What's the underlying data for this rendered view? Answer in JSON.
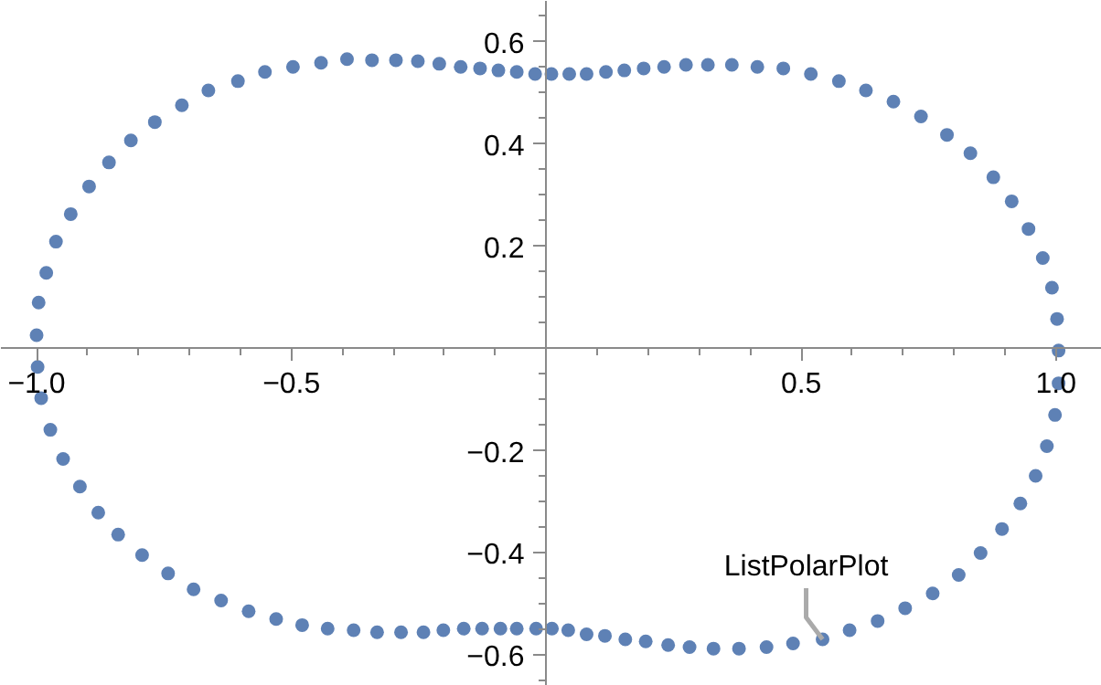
{
  "chart_data": {
    "type": "scatter",
    "marker": "circle",
    "grid": false,
    "xlim": [
      -1.07,
      1.09
    ],
    "ylim": [
      -0.66,
      0.68
    ],
    "xticks": [
      {
        "value": -1.0,
        "label": "−1.0"
      },
      {
        "value": -0.9,
        "label": null
      },
      {
        "value": -0.8,
        "label": null
      },
      {
        "value": -0.7,
        "label": null
      },
      {
        "value": -0.6,
        "label": null
      },
      {
        "value": -0.5,
        "label": "−0.5"
      },
      {
        "value": -0.4,
        "label": null
      },
      {
        "value": -0.3,
        "label": null
      },
      {
        "value": -0.2,
        "label": null
      },
      {
        "value": -0.1,
        "label": null
      },
      {
        "value": 0.1,
        "label": null
      },
      {
        "value": 0.2,
        "label": null
      },
      {
        "value": 0.3,
        "label": null
      },
      {
        "value": 0.4,
        "label": null
      },
      0.5,
      {
        "value": 0.6,
        "label": null
      },
      {
        "value": 0.7,
        "label": null
      },
      {
        "value": 0.8,
        "label": null
      },
      {
        "value": 0.9,
        "label": null
      },
      {
        "value": 1.0,
        "label": "1.0"
      }
    ],
    "yticks": [
      {
        "value": -0.65,
        "label": null
      },
      {
        "value": -0.6,
        "label": "−0.6"
      },
      {
        "value": -0.55,
        "label": null
      },
      {
        "value": -0.5,
        "label": null
      },
      {
        "value": -0.45,
        "label": null
      },
      {
        "value": -0.4,
        "label": "−0.4"
      },
      {
        "value": -0.35,
        "label": null
      },
      {
        "value": -0.3,
        "label": null
      },
      {
        "value": -0.25,
        "label": null
      },
      {
        "value": -0.2,
        "label": "−0.2"
      },
      {
        "value": -0.15,
        "label": null
      },
      {
        "value": -0.1,
        "label": null
      },
      {
        "value": -0.05,
        "label": null
      },
      {
        "value": 0.05,
        "label": null
      },
      {
        "value": 0.1,
        "label": null
      },
      {
        "value": 0.15,
        "label": null
      },
      0.2,
      {
        "value": 0.25,
        "label": null
      },
      {
        "value": 0.3,
        "label": null
      },
      {
        "value": 0.35,
        "label": null
      },
      0.4,
      {
        "value": 0.45,
        "label": null
      },
      {
        "value": 0.5,
        "label": null
      },
      {
        "value": 0.55,
        "label": null
      },
      0.6,
      {
        "value": 0.65,
        "label": null
      }
    ],
    "annotations": [
      {
        "text": "ListPolarPlot",
        "x": 0.542,
        "y": -0.569
      }
    ],
    "series": [
      {
        "color": "#5e81b5",
        "x": [
          -1.0,
          -0.996,
          -0.981,
          -0.962,
          -0.933,
          -0.897,
          -0.858,
          -0.815,
          -0.768,
          -0.715,
          -0.663,
          -0.605,
          -0.552,
          -0.497,
          -0.442,
          -0.391,
          -0.342,
          -0.295,
          -0.252,
          -0.21,
          -0.168,
          -0.13,
          -0.094,
          -0.058,
          -0.022,
          0.01,
          0.045,
          0.079,
          0.117,
          0.153,
          0.191,
          0.231,
          0.274,
          0.317,
          0.364,
          0.414,
          0.465,
          0.519,
          0.574,
          0.627,
          0.681,
          0.735,
          0.786,
          0.832,
          0.877,
          0.913,
          0.946,
          0.974,
          0.992,
          1.002,
          1.005,
          1.005,
          0.998,
          0.982,
          0.96,
          0.93,
          0.894,
          0.852,
          0.809,
          0.758,
          0.704,
          0.65,
          0.595,
          0.542,
          0.484,
          0.432,
          0.378,
          0.328,
          0.281,
          0.239,
          0.195,
          0.155,
          0.115,
          0.079,
          0.043,
          0.011,
          -0.02,
          -0.058,
          -0.09,
          -0.126,
          -0.162,
          -0.202,
          -0.241,
          -0.285,
          -0.332,
          -0.378,
          -0.429,
          -0.479,
          -0.53,
          -0.584,
          -0.638,
          -0.692,
          -0.742,
          -0.793,
          -0.84,
          -0.879,
          -0.915,
          -0.948,
          -0.973,
          -0.991,
          -0.998
        ],
        "values": [
          0.026,
          0.09,
          0.148,
          0.209,
          0.263,
          0.317,
          0.364,
          0.407,
          0.443,
          0.476,
          0.505,
          0.523,
          0.541,
          0.551,
          0.559,
          0.566,
          0.564,
          0.564,
          0.562,
          0.557,
          0.551,
          0.548,
          0.544,
          0.541,
          0.537,
          0.537,
          0.537,
          0.537,
          0.541,
          0.544,
          0.548,
          0.551,
          0.555,
          0.555,
          0.555,
          0.551,
          0.548,
          0.537,
          0.523,
          0.505,
          0.483,
          0.454,
          0.418,
          0.382,
          0.335,
          0.288,
          0.234,
          0.177,
          0.119,
          0.058,
          -0.004,
          -0.068,
          -0.13,
          -0.191,
          -0.249,
          -0.303,
          -0.353,
          -0.4,
          -0.443,
          -0.479,
          -0.508,
          -0.533,
          -0.551,
          -0.569,
          -0.577,
          -0.584,
          -0.587,
          -0.587,
          -0.584,
          -0.58,
          -0.573,
          -0.569,
          -0.562,
          -0.559,
          -0.551,
          -0.548,
          -0.548,
          -0.548,
          -0.548,
          -0.548,
          -0.548,
          -0.551,
          -0.555,
          -0.555,
          -0.555,
          -0.551,
          -0.548,
          -0.541,
          -0.529,
          -0.514,
          -0.493,
          -0.471,
          -0.44,
          -0.404,
          -0.364,
          -0.321,
          -0.27,
          -0.216,
          -0.159,
          -0.097,
          -0.036
        ]
      }
    ]
  }
}
